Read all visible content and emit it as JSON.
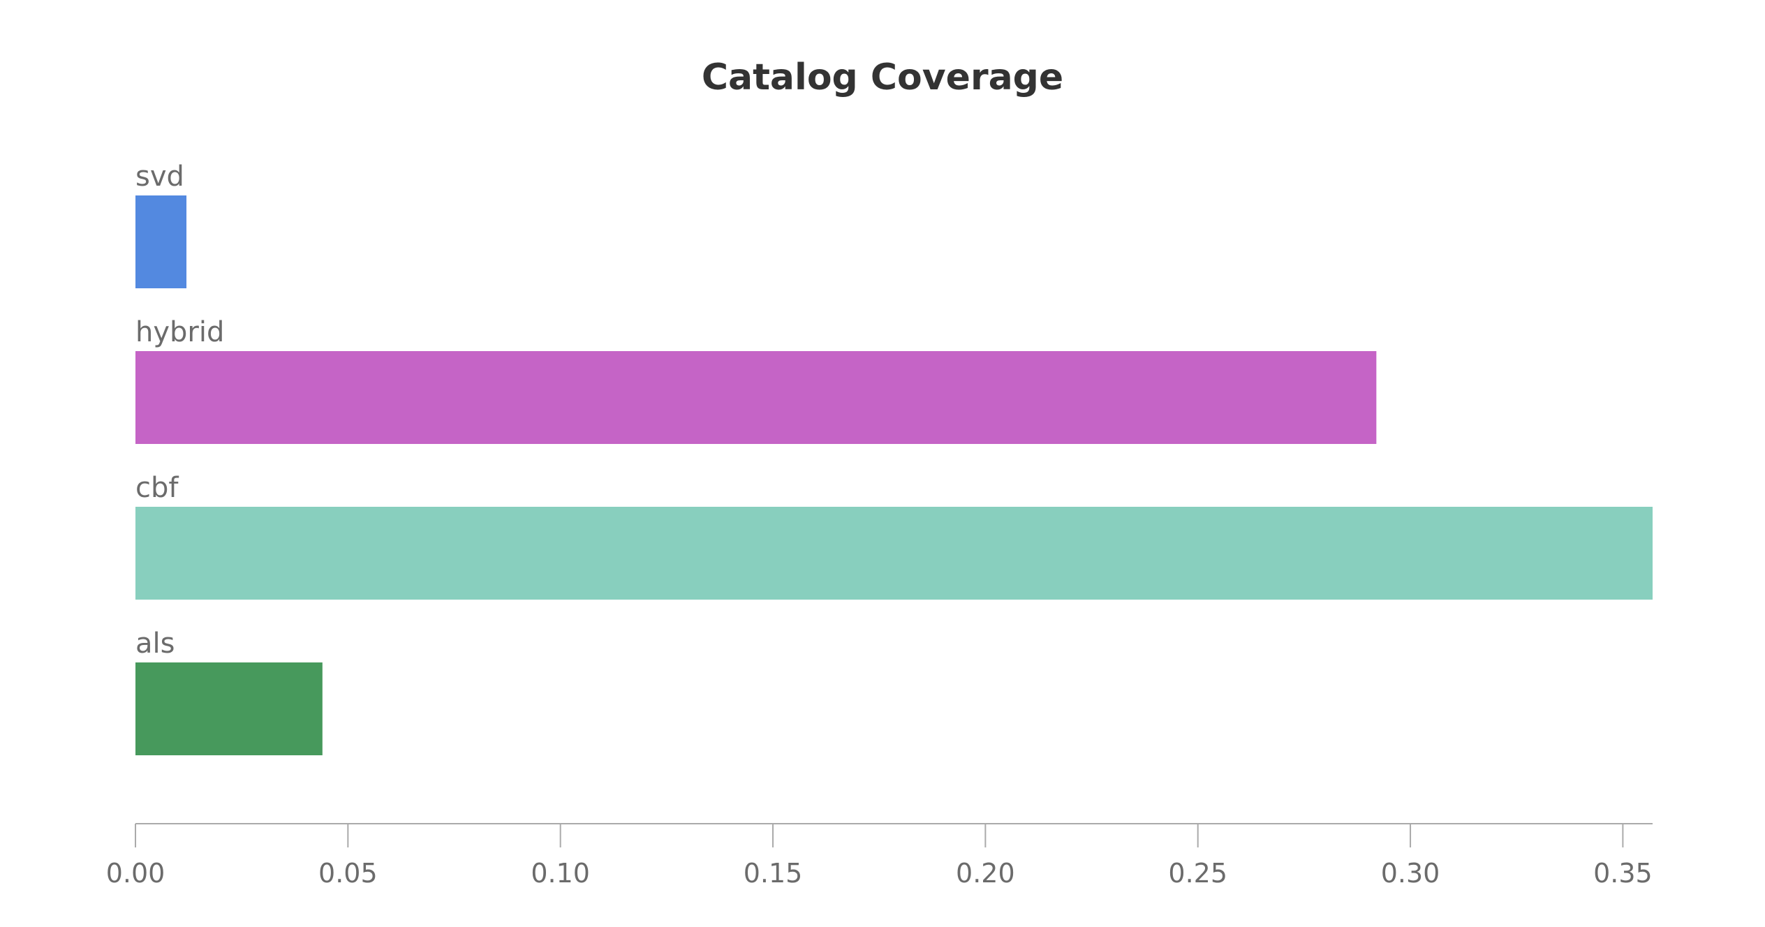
{
  "chart_data": {
    "type": "bar",
    "orientation": "horizontal",
    "title": "Catalog Coverage",
    "xlabel": "",
    "ylabel": "",
    "categories": [
      "svd",
      "hybrid",
      "cbf",
      "als"
    ],
    "values": [
      0.012,
      0.292,
      0.357,
      0.044
    ],
    "colors": [
      "#5389E0",
      "#C564C6",
      "#88CFBE",
      "#47995C"
    ],
    "xlim": [
      0,
      0.357
    ],
    "xticks": [
      0.0,
      0.05,
      0.1,
      0.15,
      0.2,
      0.25,
      0.3,
      0.35
    ],
    "xtick_labels": [
      "0.00",
      "0.05",
      "0.10",
      "0.15",
      "0.20",
      "0.25",
      "0.30",
      "0.35"
    ],
    "grid": false,
    "legend": "none"
  }
}
